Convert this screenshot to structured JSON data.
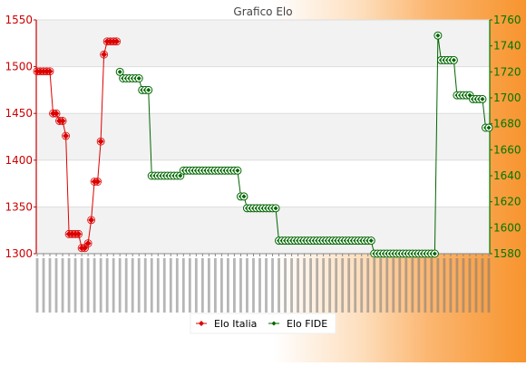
{
  "chart_data": {
    "type": "line",
    "title": "Grafico Elo",
    "xlabel": "",
    "ylabel": "",
    "left_axis": {
      "ylim": [
        1300,
        1550
      ],
      "ticks": [
        1300,
        1350,
        1400,
        1450,
        1500,
        1550
      ],
      "color": "#cc0000"
    },
    "right_axis": {
      "ylim": [
        1580,
        1760
      ],
      "ticks": [
        1580,
        1600,
        1620,
        1640,
        1660,
        1680,
        1700,
        1720,
        1740,
        1760
      ],
      "color": "#007700"
    },
    "grid": true,
    "legend_position": "bottom-center",
    "x_count": 142,
    "series": [
      {
        "name": "Elo Italia",
        "axis": "left",
        "color": "#dd0000",
        "marker": "diamond",
        "points": [
          [
            0,
            1495
          ],
          [
            1,
            1495
          ],
          [
            2,
            1495
          ],
          [
            3,
            1495
          ],
          [
            4,
            1495
          ],
          [
            5,
            1450
          ],
          [
            6,
            1450
          ],
          [
            7,
            1442
          ],
          [
            8,
            1442
          ],
          [
            9,
            1426
          ],
          [
            10,
            1321
          ],
          [
            11,
            1321
          ],
          [
            12,
            1321
          ],
          [
            13,
            1321
          ],
          [
            14,
            1306
          ],
          [
            15,
            1306
          ],
          [
            16,
            1311
          ],
          [
            17,
            1336
          ],
          [
            18,
            1377
          ],
          [
            19,
            1377
          ],
          [
            20,
            1420
          ],
          [
            21,
            1513
          ],
          [
            22,
            1527
          ],
          [
            23,
            1527
          ],
          [
            24,
            1527
          ],
          [
            25,
            1527
          ]
        ]
      },
      {
        "name": "Elo FIDE",
        "axis": "right",
        "color": "#006600",
        "marker": "circle",
        "points": [
          [
            26,
            1720
          ],
          [
            27,
            1715
          ],
          [
            28,
            1715
          ],
          [
            29,
            1715
          ],
          [
            30,
            1715
          ],
          [
            31,
            1715
          ],
          [
            32,
            1715
          ],
          [
            33,
            1706
          ],
          [
            34,
            1706
          ],
          [
            35,
            1706
          ],
          [
            36,
            1640
          ],
          [
            37,
            1640
          ],
          [
            38,
            1640
          ],
          [
            39,
            1640
          ],
          [
            40,
            1640
          ],
          [
            41,
            1640
          ],
          [
            42,
            1640
          ],
          [
            43,
            1640
          ],
          [
            44,
            1640
          ],
          [
            45,
            1640
          ],
          [
            46,
            1644
          ],
          [
            47,
            1644
          ],
          [
            48,
            1644
          ],
          [
            49,
            1644
          ],
          [
            50,
            1644
          ],
          [
            51,
            1644
          ],
          [
            52,
            1644
          ],
          [
            53,
            1644
          ],
          [
            54,
            1644
          ],
          [
            55,
            1644
          ],
          [
            56,
            1644
          ],
          [
            57,
            1644
          ],
          [
            58,
            1644
          ],
          [
            59,
            1644
          ],
          [
            60,
            1644
          ],
          [
            61,
            1644
          ],
          [
            62,
            1644
          ],
          [
            63,
            1644
          ],
          [
            64,
            1624
          ],
          [
            65,
            1624
          ],
          [
            66,
            1615
          ],
          [
            67,
            1615
          ],
          [
            68,
            1615
          ],
          [
            69,
            1615
          ],
          [
            70,
            1615
          ],
          [
            71,
            1615
          ],
          [
            72,
            1615
          ],
          [
            73,
            1615
          ],
          [
            74,
            1615
          ],
          [
            75,
            1615
          ],
          [
            76,
            1590
          ],
          [
            77,
            1590
          ],
          [
            78,
            1590
          ],
          [
            79,
            1590
          ],
          [
            80,
            1590
          ],
          [
            81,
            1590
          ],
          [
            82,
            1590
          ],
          [
            83,
            1590
          ],
          [
            84,
            1590
          ],
          [
            85,
            1590
          ],
          [
            86,
            1590
          ],
          [
            87,
            1590
          ],
          [
            88,
            1590
          ],
          [
            89,
            1590
          ],
          [
            90,
            1590
          ],
          [
            91,
            1590
          ],
          [
            92,
            1590
          ],
          [
            93,
            1590
          ],
          [
            94,
            1590
          ],
          [
            95,
            1590
          ],
          [
            96,
            1590
          ],
          [
            97,
            1590
          ],
          [
            98,
            1590
          ],
          [
            99,
            1590
          ],
          [
            100,
            1590
          ],
          [
            101,
            1590
          ],
          [
            102,
            1590
          ],
          [
            103,
            1590
          ],
          [
            104,
            1590
          ],
          [
            105,
            1590
          ],
          [
            106,
            1580
          ],
          [
            107,
            1580
          ],
          [
            108,
            1580
          ],
          [
            109,
            1580
          ],
          [
            110,
            1580
          ],
          [
            111,
            1580
          ],
          [
            112,
            1580
          ],
          [
            113,
            1580
          ],
          [
            114,
            1580
          ],
          [
            115,
            1580
          ],
          [
            116,
            1580
          ],
          [
            117,
            1580
          ],
          [
            118,
            1580
          ],
          [
            119,
            1580
          ],
          [
            120,
            1580
          ],
          [
            121,
            1580
          ],
          [
            122,
            1580
          ],
          [
            123,
            1580
          ],
          [
            124,
            1580
          ],
          [
            125,
            1580
          ],
          [
            126,
            1748
          ],
          [
            127,
            1729
          ],
          [
            128,
            1729
          ],
          [
            129,
            1729
          ],
          [
            130,
            1729
          ],
          [
            131,
            1729
          ],
          [
            132,
            1702
          ],
          [
            133,
            1702
          ],
          [
            134,
            1702
          ],
          [
            135,
            1702
          ],
          [
            136,
            1702
          ],
          [
            137,
            1699
          ],
          [
            138,
            1699
          ],
          [
            139,
            1699
          ],
          [
            140,
            1699
          ],
          [
            141,
            1677
          ],
          [
            142,
            1677
          ]
        ]
      }
    ]
  }
}
